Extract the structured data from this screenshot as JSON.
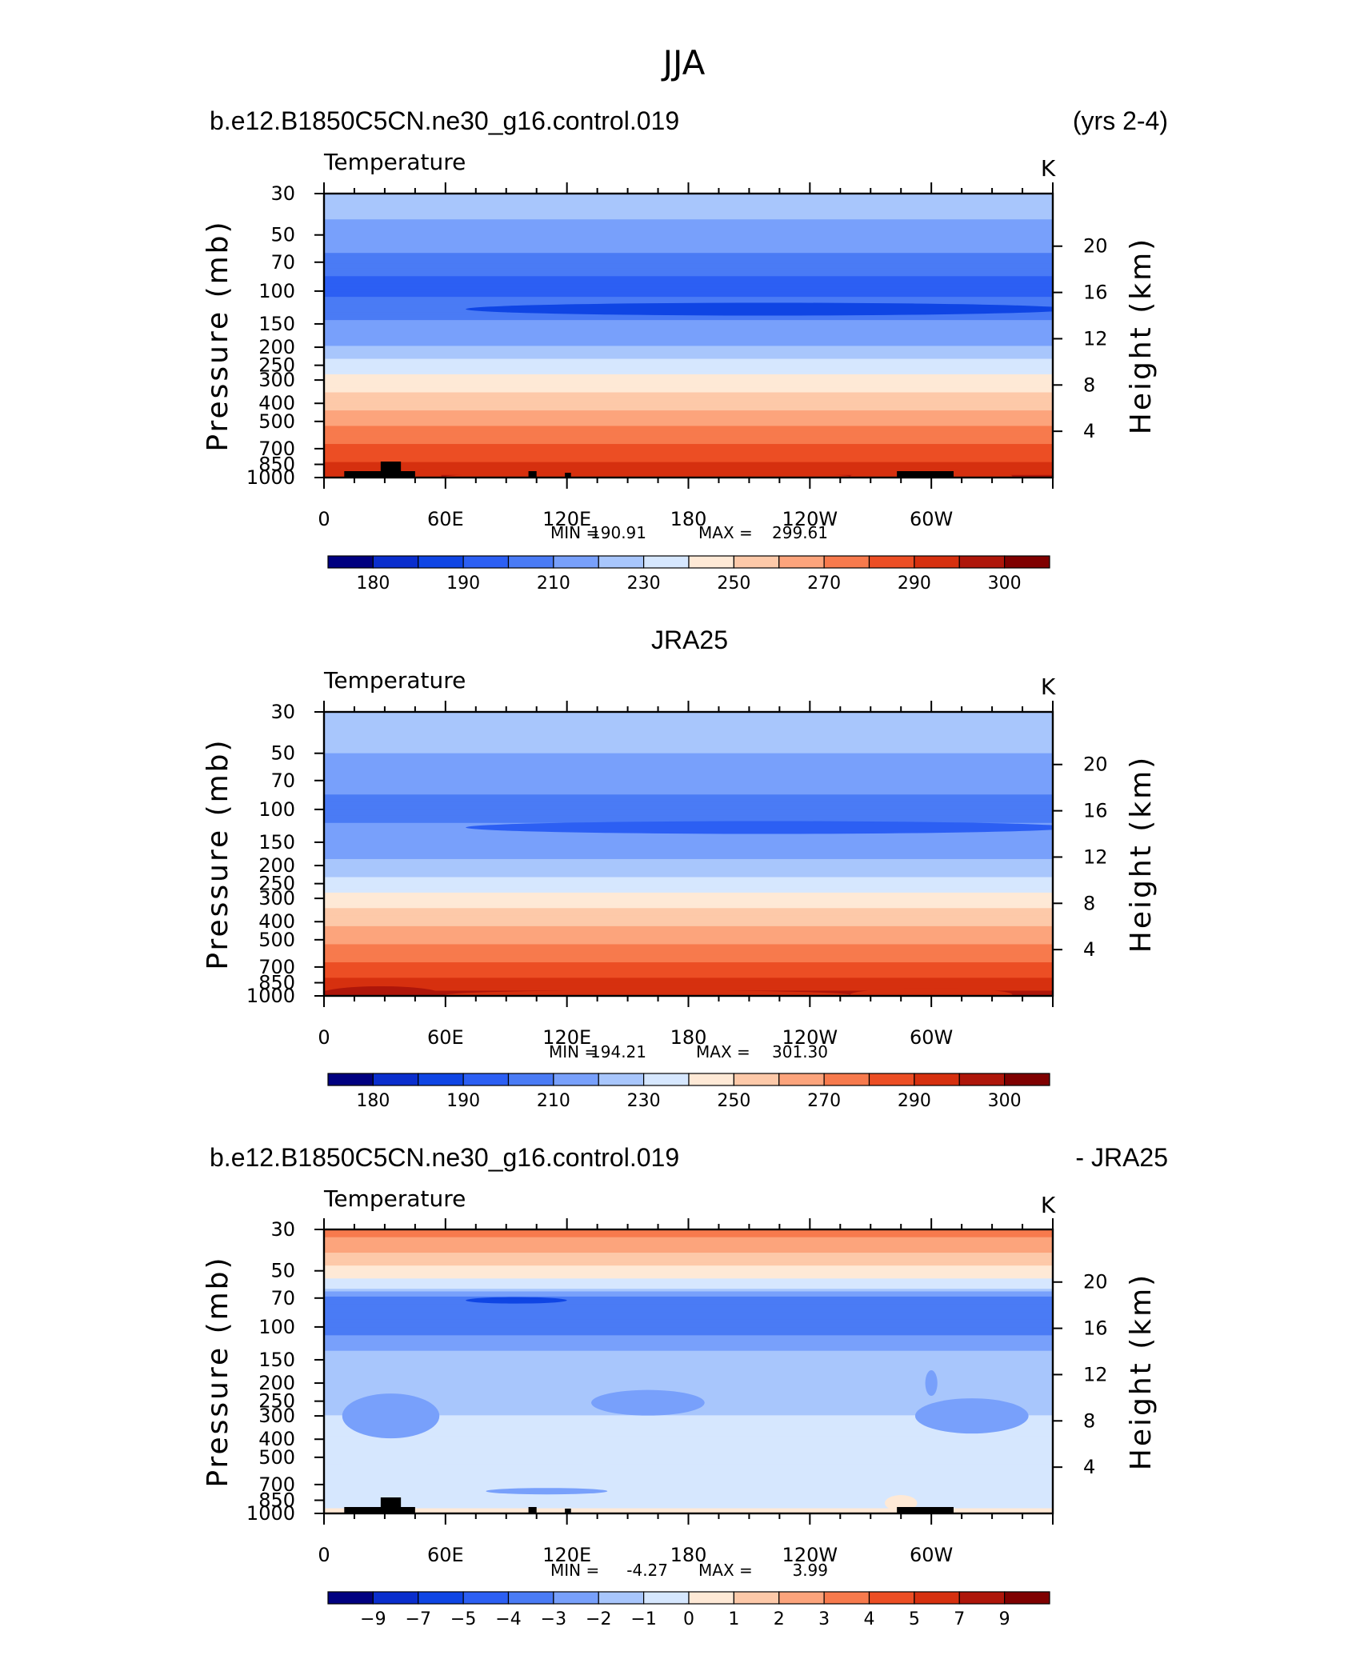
{
  "title": "JJA",
  "palette": [
    "#000080",
    "#0a2ecd",
    "#0f45e4",
    "#2c5ff3",
    "#4a7bf5",
    "#78a0fb",
    "#a8c6fc",
    "#d6e7fe",
    "#fee9d6",
    "#fdc9a9",
    "#fca47c",
    "#f77a4d",
    "#ec4e24",
    "#d6300f",
    "#ae160a",
    "#7f0000"
  ],
  "land_color": "#000000",
  "panels": [
    {
      "id": "model",
      "left_title": "b.e12.B1850C5CN.ne30_g16.control.019",
      "right_title": "(yrs 2-4)",
      "center_title": "",
      "variable": "Temperature",
      "units": "K",
      "stats": {
        "min_label": "MIN =",
        "min": "190.91",
        "max_label": "MAX =",
        "max": "299.61"
      },
      "colorbar_labels": [
        "180",
        "190",
        "210",
        "230",
        "250",
        "270",
        "290",
        "300"
      ]
    },
    {
      "id": "obs",
      "left_title": "",
      "right_title": "",
      "center_title": "JRA25",
      "variable": "Temperature",
      "units": "K",
      "stats": {
        "min_label": "MIN =",
        "min": "194.21",
        "max_label": "MAX =",
        "max": "301.30"
      },
      "colorbar_labels": [
        "180",
        "190",
        "210",
        "230",
        "250",
        "270",
        "290",
        "300"
      ]
    },
    {
      "id": "diff",
      "left_title": "b.e12.B1850C5CN.ne30_g16.control.019",
      "right_title": "- JRA25",
      "center_title": "",
      "variable": "Temperature",
      "units": "K",
      "stats": {
        "min_label": "MIN =",
        "min": "-4.27",
        "max_label": "MAX =",
        "max": "3.99"
      },
      "colorbar_labels": [
        "−9",
        "−7",
        "−5",
        "−4",
        "−3",
        "−2",
        "−1",
        "0",
        "1",
        "2",
        "3",
        "4",
        "5",
        "7",
        "9"
      ]
    }
  ],
  "axes": {
    "y_label": "Pressure (mb)",
    "y_right_label": "Height (km)",
    "y_ticks": [
      "30",
      "50",
      "70",
      "100",
      "150",
      "200",
      "250",
      "300",
      "400",
      "500",
      "700",
      "850",
      "1000"
    ],
    "y_right_ticks": [
      "20",
      "16",
      "12",
      "8",
      "4"
    ],
    "x_ticks": [
      "0",
      "60E",
      "120E",
      "180",
      "120W",
      "60W"
    ]
  },
  "chart_data": [
    {
      "type": "heatmap",
      "subtype": "zonal-mean pressure-longitude cross-section",
      "title": "b.e12.B1850C5CN.ne30_g16.control.019 (yrs 2-4)",
      "variable": "Temperature",
      "units": "K",
      "x": "longitude 0 to 360",
      "y": "pressure 30 to 1000 mb (log)",
      "y_axis_scale": "log",
      "xlabel": "",
      "ylabel": "Pressure (mb)",
      "ylabel_right": "Height (km)",
      "min": 190.91,
      "max": 299.61,
      "contour_levels": [
        180,
        185,
        190,
        195,
        200,
        210,
        220,
        230,
        240,
        250,
        260,
        270,
        280,
        290,
        295,
        300
      ],
      "vertical_profile_K": [
        [
          30,
          215
        ],
        [
          50,
          207
        ],
        [
          70,
          196
        ],
        [
          100,
          194
        ],
        [
          150,
          201
        ],
        [
          200,
          211
        ],
        [
          250,
          224
        ],
        [
          300,
          233
        ],
        [
          400,
          246
        ],
        [
          500,
          257
        ],
        [
          700,
          272
        ],
        [
          850,
          282
        ],
        [
          1000,
          293
        ]
      ]
    },
    {
      "type": "heatmap",
      "subtype": "zonal-mean pressure-longitude cross-section",
      "title": "JRA25",
      "variable": "Temperature",
      "units": "K",
      "x": "longitude 0 to 360",
      "y": "pressure 30 to 1000 mb (log)",
      "y_axis_scale": "log",
      "xlabel": "",
      "ylabel": "Pressure (mb)",
      "ylabel_right": "Height (km)",
      "min": 194.21,
      "max": 301.3,
      "contour_levels": [
        180,
        185,
        190,
        195,
        200,
        210,
        220,
        230,
        240,
        250,
        260,
        270,
        280,
        290,
        295,
        300
      ],
      "vertical_profile_K": [
        [
          30,
          216
        ],
        [
          50,
          210
        ],
        [
          70,
          203
        ],
        [
          100,
          197
        ],
        [
          150,
          204
        ],
        [
          200,
          213
        ],
        [
          250,
          225
        ],
        [
          300,
          234
        ],
        [
          400,
          247
        ],
        [
          500,
          258
        ],
        [
          700,
          273
        ],
        [
          850,
          283
        ],
        [
          1000,
          294
        ]
      ]
    },
    {
      "type": "heatmap",
      "subtype": "zonal-mean pressure-longitude cross-section (difference)",
      "title": "b.e12.B1850C5CN.ne30_g16.control.019 - JRA25",
      "variable": "Temperature",
      "units": "K",
      "x": "longitude 0 to 360",
      "y": "pressure 30 to 1000 mb (log)",
      "y_axis_scale": "log",
      "xlabel": "",
      "ylabel": "Pressure (mb)",
      "ylabel_right": "Height (km)",
      "min": -4.27,
      "max": 3.99,
      "contour_levels": [
        -9,
        -7,
        -5,
        -4,
        -3,
        -2,
        -1,
        0,
        1,
        2,
        3,
        4,
        5,
        7,
        9
      ],
      "vertical_profile_K": [
        [
          30,
          3.5
        ],
        [
          40,
          2.0
        ],
        [
          50,
          0.5
        ],
        [
          60,
          -0.5
        ],
        [
          70,
          -3.5
        ],
        [
          100,
          -3.5
        ],
        [
          150,
          -1.5
        ],
        [
          200,
          -1.5
        ],
        [
          300,
          -1.0
        ],
        [
          500,
          -1.0
        ],
        [
          700,
          -1.0
        ],
        [
          850,
          -0.5
        ],
        [
          1000,
          0.3
        ]
      ]
    }
  ]
}
